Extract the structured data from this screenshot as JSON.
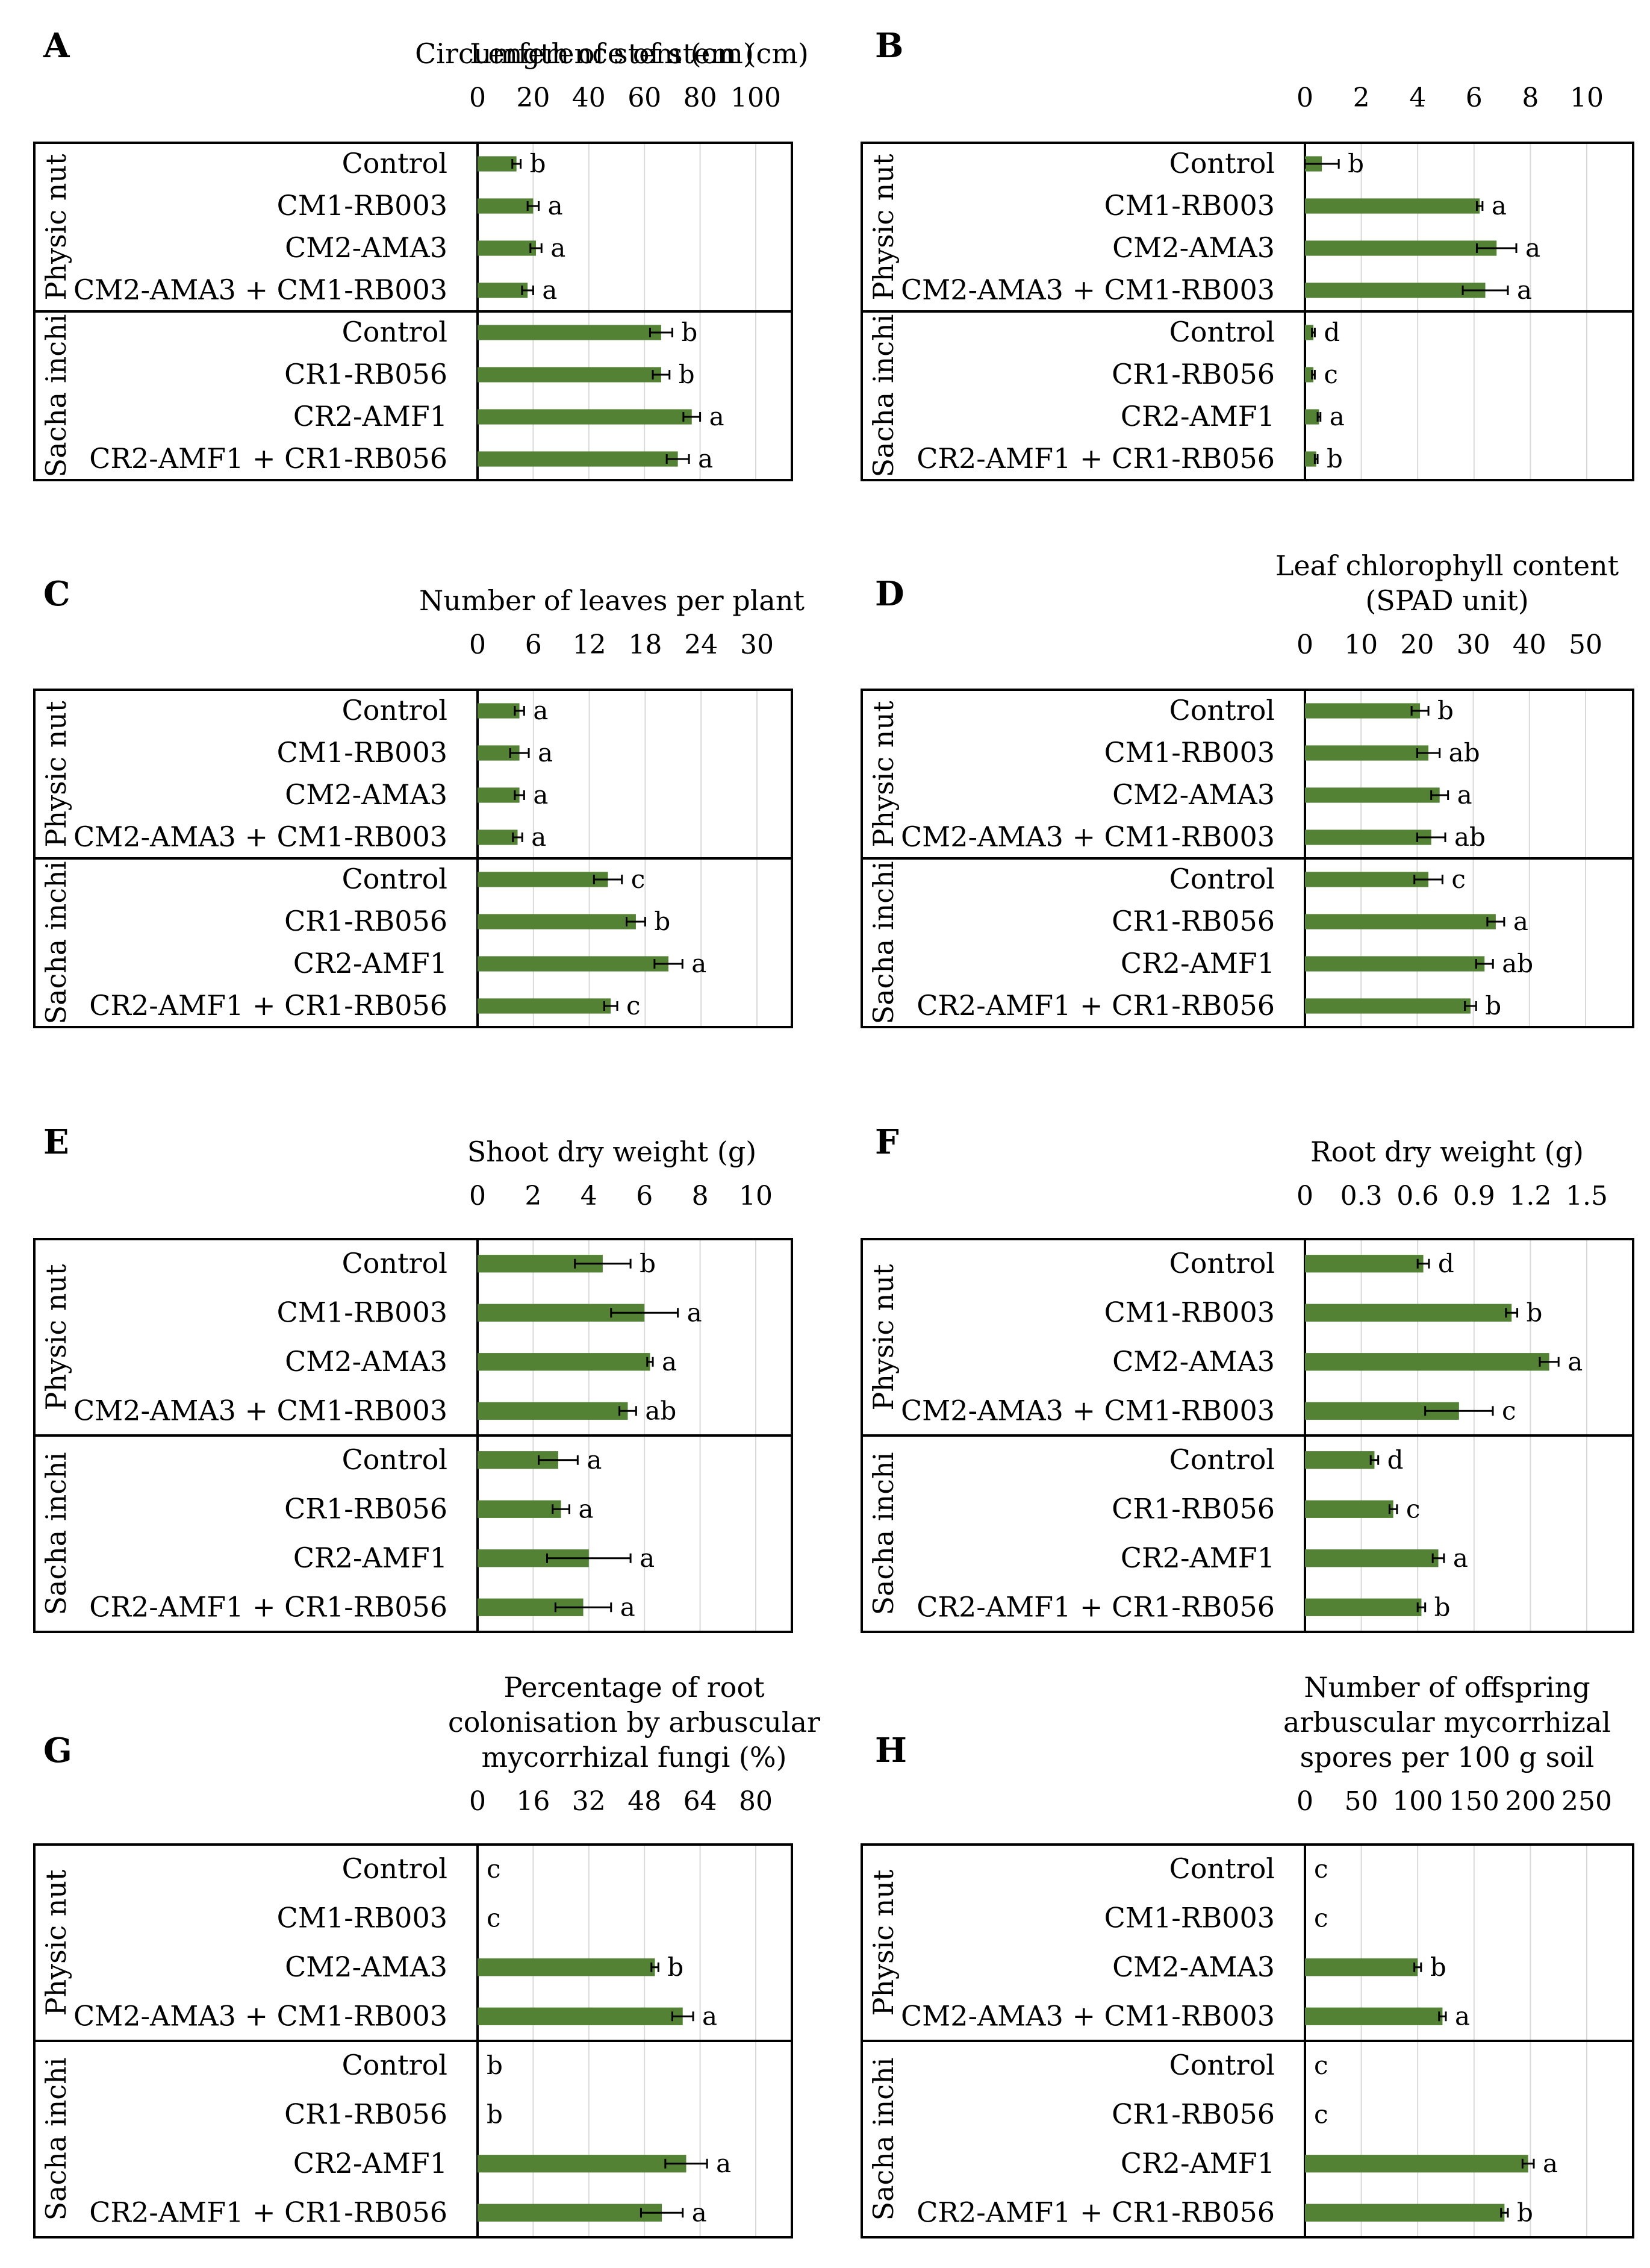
{
  "group_labels": [
    "Physic nut",
    "Sacha inchi"
  ],
  "chart_data": [
    {
      "type": "bar",
      "orientation": "horizontal",
      "panel": "A",
      "title": [
        "Length of stem (cm)"
      ],
      "xlim": [
        0,
        100
      ],
      "ticks": [
        0,
        20,
        40,
        60,
        80,
        100
      ],
      "tick_labels": [
        "0",
        "20",
        "40",
        "60",
        "80",
        "100"
      ],
      "grid": true,
      "color": "#548235",
      "categories": [
        "Control",
        "CM1-RB003",
        "CM2-AMA3",
        "CM2-AMA3 + CM1-RB003",
        "Control",
        "CR1-RB056",
        "CR2-AMF1",
        "CR2-AMF1 + CR1-RB056"
      ],
      "groups": [
        "Physic nut",
        "Physic nut",
        "Physic nut",
        "Physic nut",
        "Sacha inchi",
        "Sacha inchi",
        "Sacha inchi",
        "Sacha inchi"
      ],
      "values": [
        14,
        20,
        21,
        18,
        66,
        66,
        77,
        72
      ],
      "errors": [
        1.5,
        2,
        2,
        2,
        4,
        3,
        3,
        4
      ],
      "significance": [
        "b",
        "a",
        "a",
        "a",
        "b",
        "b",
        "a",
        "a"
      ]
    },
    {
      "type": "bar",
      "orientation": "horizontal",
      "panel": "B",
      "title": [
        "Circumference of stem (cm)"
      ],
      "xlim": [
        0,
        10
      ],
      "ticks": [
        0,
        2,
        4,
        6,
        8,
        10
      ],
      "tick_labels": [
        "0",
        "2",
        "4",
        "6",
        "8",
        "10"
      ],
      "grid": true,
      "color": "#548235",
      "categories": [
        "Control",
        "CM1-RB003",
        "CM2-AMA3",
        "CM2-AMA3 + CM1-RB003",
        "Control",
        "CR1-RB056",
        "CR2-AMF1",
        "CR2-AMF1 + CR1-RB056"
      ],
      "groups": [
        "Physic nut",
        "Physic nut",
        "Physic nut",
        "Physic nut",
        "Sacha inchi",
        "Sacha inchi",
        "Sacha inchi",
        "Sacha inchi"
      ],
      "values": [
        0.6,
        6.2,
        6.8,
        6.4,
        0.3,
        0.3,
        0.5,
        0.4
      ],
      "errors": [
        0.6,
        0.1,
        0.7,
        0.8,
        0.05,
        0.05,
        0.05,
        0.05
      ],
      "significance": [
        "b",
        "a",
        "a",
        "a",
        "d",
        "c",
        "a",
        "b"
      ]
    },
    {
      "type": "bar",
      "orientation": "horizontal",
      "panel": "C",
      "title": [
        "Number of leaves per plant"
      ],
      "xlim": [
        0,
        30
      ],
      "ticks": [
        0,
        6,
        12,
        18,
        24,
        30
      ],
      "tick_labels": [
        "0",
        "6",
        "12",
        "18",
        "24",
        "30"
      ],
      "grid": true,
      "color": "#548235",
      "categories": [
        "Control",
        "CM1-RB003",
        "CM2-AMA3",
        "CM2-AMA3 + CM1-RB003",
        "Control",
        "CR1-RB056",
        "CR2-AMF1",
        "CR2-AMF1 + CR1-RB056"
      ],
      "groups": [
        "Physic nut",
        "Physic nut",
        "Physic nut",
        "Physic nut",
        "Sacha inchi",
        "Sacha inchi",
        "Sacha inchi",
        "Sacha inchi"
      ],
      "values": [
        4.5,
        4.5,
        4.5,
        4.3,
        14,
        17,
        20.5,
        14.3
      ],
      "errors": [
        0.5,
        1,
        0.5,
        0.5,
        1.5,
        1,
        1.5,
        0.7
      ],
      "significance": [
        "a",
        "a",
        "a",
        "a",
        "c",
        "b",
        "a",
        "c"
      ]
    },
    {
      "type": "bar",
      "orientation": "horizontal",
      "panel": "D",
      "title": [
        "Leaf chlorophyll content",
        "(SPAD unit)"
      ],
      "xlim": [
        0,
        50
      ],
      "ticks": [
        0,
        10,
        20,
        30,
        40,
        50
      ],
      "tick_labels": [
        "0",
        "10",
        "20",
        "30",
        "40",
        "50"
      ],
      "grid": true,
      "color": "#548235",
      "categories": [
        "Control",
        "CM1-RB003",
        "CM2-AMA3",
        "CM2-AMA3 + CM1-RB003",
        "Control",
        "CR1-RB056",
        "CR2-AMF1",
        "CR2-AMF1 + CR1-RB056"
      ],
      "groups": [
        "Physic nut",
        "Physic nut",
        "Physic nut",
        "Physic nut",
        "Sacha inchi",
        "Sacha inchi",
        "Sacha inchi",
        "Sacha inchi"
      ],
      "values": [
        20.5,
        22,
        24,
        22.5,
        22,
        34,
        32,
        29.5
      ],
      "errors": [
        1.5,
        2,
        1.5,
        2.5,
        2.5,
        1.5,
        1.5,
        1
      ],
      "significance": [
        "b",
        "ab",
        "a",
        "ab",
        "c",
        "a",
        "ab",
        "b"
      ]
    },
    {
      "type": "bar",
      "orientation": "horizontal",
      "panel": "E",
      "title": [
        "Shoot dry weight (g)"
      ],
      "xlim": [
        0,
        10
      ],
      "ticks": [
        0,
        2,
        4,
        6,
        8,
        10
      ],
      "tick_labels": [
        "0",
        "2",
        "4",
        "6",
        "8",
        "10"
      ],
      "grid": true,
      "color": "#548235",
      "categories": [
        "Control",
        "CM1-RB003",
        "CM2-AMA3",
        "CM2-AMA3 + CM1-RB003",
        "Control",
        "CR1-RB056",
        "CR2-AMF1",
        "CR2-AMF1 + CR1-RB056"
      ],
      "groups": [
        "Physic nut",
        "Physic nut",
        "Physic nut",
        "Physic nut",
        "Sacha inchi",
        "Sacha inchi",
        "Sacha inchi",
        "Sacha inchi"
      ],
      "values": [
        4.5,
        6,
        6.2,
        5.4,
        2.9,
        3.0,
        4.0,
        3.8
      ],
      "errors": [
        1,
        1.2,
        0.1,
        0.3,
        0.7,
        0.3,
        1.5,
        1
      ],
      "significance": [
        "b",
        "a",
        "a",
        "ab",
        "a",
        "a",
        "a",
        "a"
      ]
    },
    {
      "type": "bar",
      "orientation": "horizontal",
      "panel": "F",
      "title": [
        "Root dry weight (g)"
      ],
      "xlim": [
        0,
        1.5
      ],
      "ticks": [
        0,
        0.3,
        0.6,
        0.9,
        1.2,
        1.5
      ],
      "tick_labels": [
        "0",
        "0.3",
        "0.6",
        "0.9",
        "1.2",
        "1.5"
      ],
      "grid": true,
      "color": "#548235",
      "categories": [
        "Control",
        "CM1-RB003",
        "CM2-AMA3",
        "CM2-AMA3 + CM1-RB003",
        "Control",
        "CR1-RB056",
        "CR2-AMF1",
        "CR2-AMF1 + CR1-RB056"
      ],
      "groups": [
        "Physic nut",
        "Physic nut",
        "Physic nut",
        "Physic nut",
        "Sacha inchi",
        "Sacha inchi",
        "Sacha inchi",
        "Sacha inchi"
      ],
      "values": [
        0.63,
        1.1,
        1.3,
        0.82,
        0.37,
        0.47,
        0.71,
        0.62
      ],
      "errors": [
        0.03,
        0.03,
        0.05,
        0.18,
        0.02,
        0.02,
        0.03,
        0.02
      ],
      "significance": [
        "d",
        "b",
        "a",
        "c",
        "d",
        "c",
        "a",
        "b"
      ]
    },
    {
      "type": "bar",
      "orientation": "horizontal",
      "panel": "G",
      "title": [
        "Percentage of root",
        "colonisation by arbuscular",
        "mycorrhizal fungi (%)"
      ],
      "xlim": [
        0,
        80
      ],
      "ticks": [
        0,
        16,
        32,
        48,
        64,
        80
      ],
      "tick_labels": [
        "0",
        "16",
        "32",
        "48",
        "64",
        "80"
      ],
      "grid": true,
      "color": "#548235",
      "categories": [
        "Control",
        "CM1-RB003",
        "CM2-AMA3",
        "CM2-AMA3 + CM1-RB003",
        "Control",
        "CR1-RB056",
        "CR2-AMF1",
        "CR2-AMF1 + CR1-RB056"
      ],
      "groups": [
        "Physic nut",
        "Physic nut",
        "Physic nut",
        "Physic nut",
        "Sacha inchi",
        "Sacha inchi",
        "Sacha inchi",
        "Sacha inchi"
      ],
      "values": [
        0,
        0,
        51,
        59,
        0,
        0,
        60,
        53
      ],
      "errors": [
        0,
        0,
        1,
        3,
        0,
        0,
        6,
        6
      ],
      "significance": [
        "c",
        "c",
        "b",
        "a",
        "b",
        "b",
        "a",
        "a"
      ]
    },
    {
      "type": "bar",
      "orientation": "horizontal",
      "panel": "H",
      "title": [
        "Number of offspring",
        "arbuscular mycorrhizal",
        "spores per 100 g soil"
      ],
      "xlim": [
        0,
        250
      ],
      "ticks": [
        0,
        50,
        100,
        150,
        200,
        250
      ],
      "tick_labels": [
        "0",
        "50",
        "100",
        "150",
        "200",
        "250"
      ],
      "grid": true,
      "color": "#548235",
      "categories": [
        "Control",
        "CM1-RB003",
        "CM2-AMA3",
        "CM2-AMA3 + CM1-RB003",
        "Control",
        "CR1-RB056",
        "CR2-AMF1",
        "CR2-AMF1 + CR1-RB056"
      ],
      "groups": [
        "Physic nut",
        "Physic nut",
        "Physic nut",
        "Physic nut",
        "Sacha inchi",
        "Sacha inchi",
        "Sacha inchi",
        "Sacha inchi"
      ],
      "values": [
        0,
        0,
        100,
        122,
        0,
        0,
        198,
        177
      ],
      "errors": [
        0,
        0,
        3,
        3,
        0,
        0,
        5,
        3
      ],
      "significance": [
        "c",
        "c",
        "b",
        "a",
        "c",
        "c",
        "a",
        "b"
      ]
    }
  ]
}
